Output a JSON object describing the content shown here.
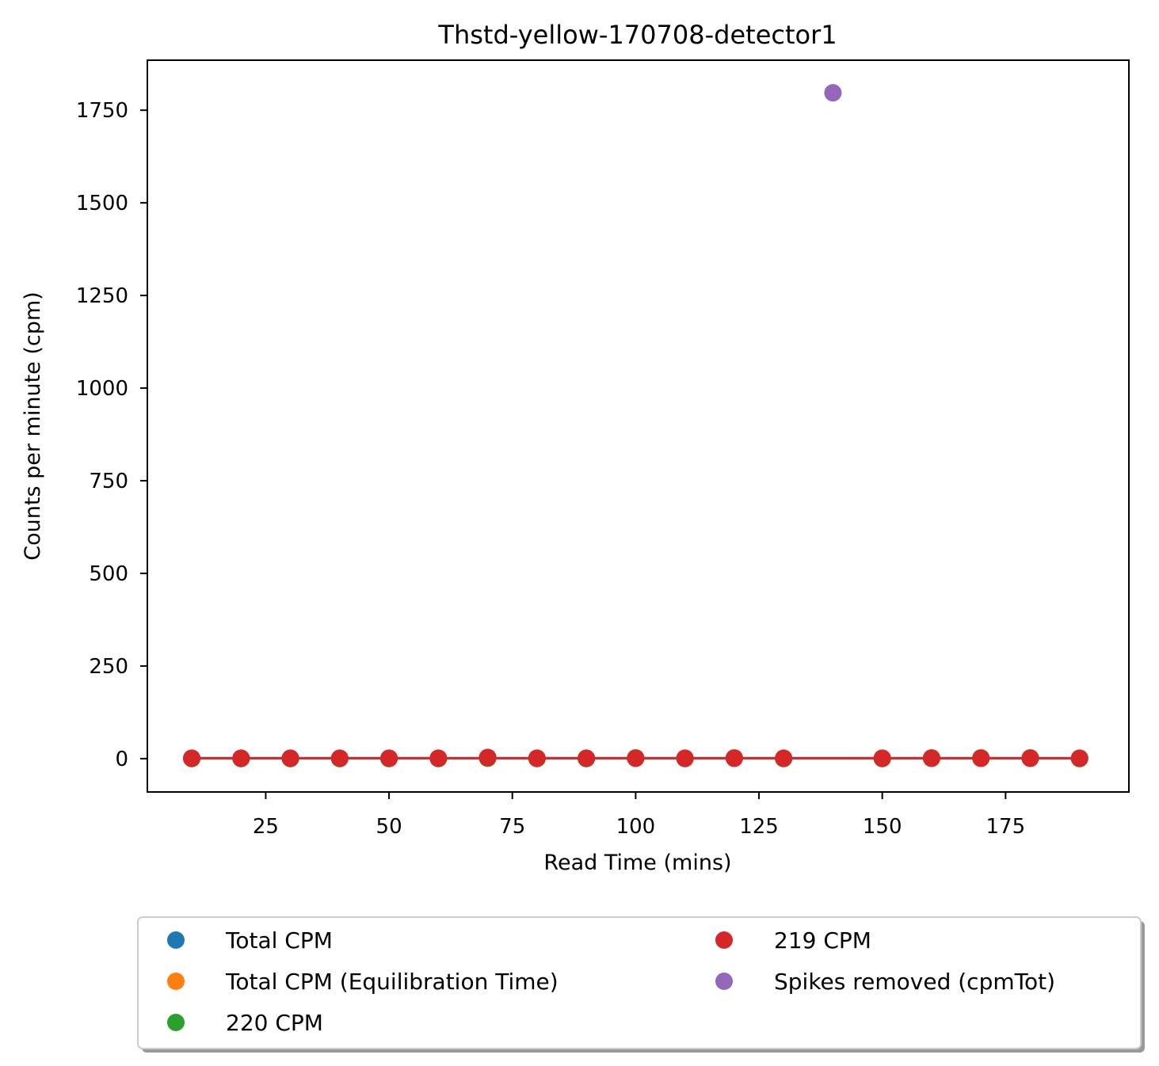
{
  "chart_data": {
    "type": "scatter",
    "title": "Thstd-yellow-170708-detector1",
    "xlabel": "Read Time (mins)",
    "ylabel": "Counts per minute (cpm)",
    "xlim": [
      1,
      200
    ],
    "ylim": [
      -90,
      1885
    ],
    "xticks": [
      25,
      50,
      75,
      100,
      125,
      150,
      175
    ],
    "yticks": [
      0,
      250,
      500,
      750,
      1000,
      1250,
      1500,
      1750
    ],
    "grid": false,
    "legend_position": "below chart, 2 columns",
    "series": [
      {
        "name": "Total CPM",
        "color": "#1f77b4",
        "marker": "circle",
        "x": [
          10,
          20,
          30,
          40,
          50,
          60,
          70,
          80,
          90,
          100,
          110,
          120,
          130,
          150,
          160,
          170,
          180,
          190
        ],
        "y": [
          1,
          1,
          1,
          1,
          1,
          1,
          3,
          1,
          1,
          2,
          1,
          2,
          1,
          1,
          2,
          2,
          2,
          1
        ]
      },
      {
        "name": "Total CPM (Equilibration Time)",
        "color": "#ff7f0e",
        "marker": "circle",
        "x": [
          10,
          20,
          30,
          40,
          50,
          60,
          70,
          80,
          90,
          100,
          110,
          120,
          130,
          150,
          160,
          170,
          180,
          190
        ],
        "y": [
          1,
          1,
          1,
          1,
          1,
          1,
          3,
          1,
          1,
          2,
          1,
          2,
          1,
          1,
          2,
          2,
          2,
          1
        ]
      },
      {
        "name": "220 CPM",
        "color": "#2ca02c",
        "marker": "circle",
        "x": [
          10,
          20,
          30,
          40,
          50,
          60,
          70,
          80,
          90,
          100,
          110,
          120,
          130,
          150,
          160,
          170,
          180,
          190
        ],
        "y": [
          0,
          0,
          0,
          0,
          0,
          0,
          1,
          0,
          0,
          1,
          0,
          1,
          0,
          0,
          1,
          1,
          1,
          0
        ]
      },
      {
        "name": "219 CPM",
        "color": "#d62728",
        "marker": "circle",
        "x": [
          10,
          20,
          30,
          40,
          50,
          60,
          70,
          80,
          90,
          100,
          110,
          120,
          130,
          150,
          160,
          170,
          180,
          190
        ],
        "y": [
          1,
          1,
          1,
          1,
          1,
          1,
          3,
          1,
          1,
          1,
          1,
          1,
          1,
          1,
          1,
          1,
          1,
          1
        ]
      },
      {
        "name": "Spikes removed (cpmTot)",
        "color": "#9467bd",
        "marker": "circle",
        "x": [
          140
        ],
        "y": [
          1797
        ]
      }
    ],
    "fit_lines": [
      {
        "series": "Total CPM",
        "color": "#1f77b4",
        "x": [
          10,
          190
        ],
        "y": [
          1.3,
          1.3
        ]
      },
      {
        "series": "219 CPM",
        "color": "#d62728",
        "x": [
          10,
          190
        ],
        "y": [
          1.2,
          1.2
        ]
      }
    ],
    "legend": [
      {
        "label": "Total CPM",
        "color": "#1f77b4"
      },
      {
        "label": "Total CPM (Equilibration Time)",
        "color": "#ff7f0e"
      },
      {
        "label": "220 CPM",
        "color": "#2ca02c"
      },
      {
        "label": "219 CPM",
        "color": "#d62728"
      },
      {
        "label": "Spikes removed (cpmTot)",
        "color": "#9467bd"
      }
    ]
  }
}
